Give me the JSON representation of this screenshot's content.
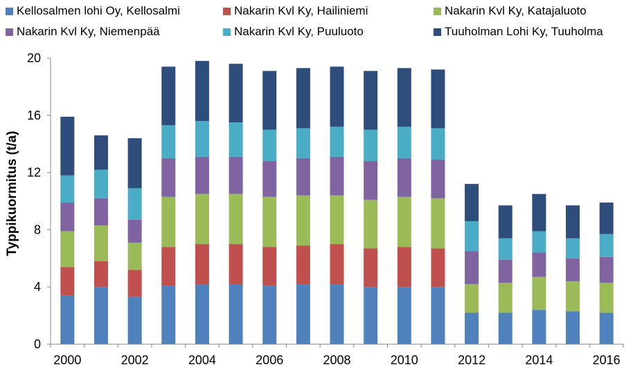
{
  "chart_data": {
    "type": "stacked-bar",
    "title": "",
    "xlabel": "",
    "ylabel": "Typpikuormitus (t/a)",
    "ylim": [
      0,
      20
    ],
    "yticks": [
      0,
      4,
      8,
      12,
      16,
      20
    ],
    "grid": false,
    "legend_position": "top",
    "categories": [
      "2000",
      "2001",
      "2002",
      "2003",
      "2004",
      "2005",
      "2006",
      "2007",
      "2008",
      "2009",
      "2010",
      "2011",
      "2012",
      "2013",
      "2014",
      "2015",
      "2016"
    ],
    "xtick_labels": [
      "2000",
      "2002",
      "2004",
      "2006",
      "2008",
      "2010",
      "2012",
      "2014",
      "2016"
    ],
    "series": [
      {
        "name": "Kellosalmen lohi Oy, Kellosalmi",
        "color": "#4f81bd",
        "values": [
          3.4,
          4.0,
          3.3,
          4.1,
          4.2,
          4.2,
          4.1,
          4.2,
          4.2,
          4.0,
          4.0,
          4.0,
          2.2,
          2.2,
          2.4,
          2.3,
          2.2
        ]
      },
      {
        "name": "Nakarin Kvl Ky, Hailiniemi",
        "color": "#c0504d",
        "values": [
          2.0,
          1.8,
          1.9,
          2.7,
          2.8,
          2.8,
          2.7,
          2.7,
          2.8,
          2.7,
          2.8,
          2.7,
          0,
          0,
          0,
          0,
          0
        ]
      },
      {
        "name": "Nakarin Kvl Ky, Katajaluoto",
        "color": "#9bbb59",
        "values": [
          2.5,
          2.5,
          1.9,
          3.5,
          3.5,
          3.5,
          3.5,
          3.5,
          3.4,
          3.4,
          3.5,
          3.5,
          2.0,
          2.1,
          2.3,
          2.1,
          2.1
        ]
      },
      {
        "name": "Nakarin Kvl Ky, Niemenpää",
        "color": "#8064a2",
        "values": [
          2.0,
          1.9,
          1.6,
          2.7,
          2.6,
          2.6,
          2.5,
          2.6,
          2.7,
          2.7,
          2.7,
          2.7,
          2.3,
          1.6,
          1.7,
          1.6,
          1.8
        ]
      },
      {
        "name": "Nakarin Kvl Ky, Puuluoto",
        "color": "#4bacc6",
        "values": [
          1.9,
          2.0,
          2.2,
          2.3,
          2.5,
          2.4,
          2.2,
          2.1,
          2.1,
          2.2,
          2.2,
          2.2,
          2.1,
          1.5,
          1.5,
          1.4,
          1.6
        ]
      },
      {
        "name": "Tuuholman Lohi Ky, Tuuholma",
        "color": "#2e4d7a",
        "values": [
          4.1,
          2.4,
          3.5,
          4.1,
          4.2,
          4.1,
          4.1,
          4.2,
          4.2,
          4.1,
          4.1,
          4.1,
          2.6,
          2.3,
          2.6,
          2.3,
          2.2
        ]
      }
    ]
  }
}
